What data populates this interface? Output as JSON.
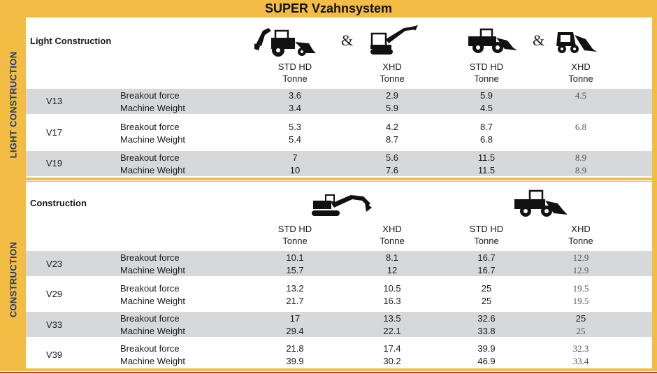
{
  "title": "SUPER Vzahnsystem",
  "colors": {
    "accent": "#F2BC45",
    "band": "#D7D8DA",
    "side_text": "#1f3b6e",
    "bottom_line": "#c0392b"
  },
  "sections": [
    {
      "side_label": "LIGHT CONSTRUCTION",
      "title": "Light Construction",
      "ampersand": "&",
      "icons": [
        "backhoe-loader-icon",
        "mini-excavator-icon",
        "wheel-loader-icon",
        "skid-steer-loader-icon"
      ],
      "columns": [
        {
          "line1": "STD HD",
          "line2": "Tonne"
        },
        {
          "line1": "XHD",
          "line2": "Tonne"
        },
        {
          "line1": "STD HD",
          "line2": "Tonne"
        },
        {
          "line1": "XHD",
          "line2": "Tonne"
        }
      ],
      "metrics": [
        "Breakout force",
        "Machine Weight"
      ],
      "rows": [
        {
          "model": "V13",
          "breakout": [
            "3.6",
            "2.9",
            "5.9",
            "4.5"
          ],
          "weight": [
            "3.4",
            "5.9",
            "4.5",
            ""
          ]
        },
        {
          "model": "V17",
          "breakout": [
            "5.3",
            "4.2",
            "8.7",
            "6.8"
          ],
          "weight": [
            "5.4",
            "8.7",
            "6.8",
            ""
          ]
        },
        {
          "model": "V19",
          "breakout": [
            "7",
            "5.6",
            "11.5",
            "8.9"
          ],
          "weight": [
            "10",
            "7.6",
            "11.5",
            "8.9"
          ]
        }
      ]
    },
    {
      "side_label": "CONSTRUCTION",
      "title": "Construction",
      "icons": [
        "excavator-icon",
        "wheel-loader-icon"
      ],
      "columns": [
        {
          "line1": "STD HD",
          "line2": "Tonne"
        },
        {
          "line1": "XHD",
          "line2": "Tonne"
        },
        {
          "line1": "STD HD",
          "line2": "Tonne"
        },
        {
          "line1": "XHD",
          "line2": "Tonne"
        }
      ],
      "metrics": [
        "Breakout force",
        "Machine Weight"
      ],
      "rows": [
        {
          "model": "V23",
          "breakout": [
            "10.1",
            "8.1",
            "16.7",
            "12.9"
          ],
          "weight": [
            "15.7",
            "12",
            "16.7",
            "12.9"
          ]
        },
        {
          "model": "V29",
          "breakout": [
            "13.2",
            "10.5",
            "25",
            "19.5"
          ],
          "weight": [
            "21.7",
            "16.3",
            "25",
            "19.5"
          ]
        },
        {
          "model": "V33",
          "breakout": [
            "17",
            "13.5",
            "32.6",
            "25"
          ],
          "weight": [
            "29.4",
            "22.1",
            "33.8",
            "25"
          ]
        },
        {
          "model": "V39",
          "breakout": [
            "21.8",
            "17.4",
            "39.9",
            "32.3"
          ],
          "weight": [
            "39.9",
            "30.2",
            "46.9",
            "33.4"
          ]
        }
      ]
    }
  ]
}
